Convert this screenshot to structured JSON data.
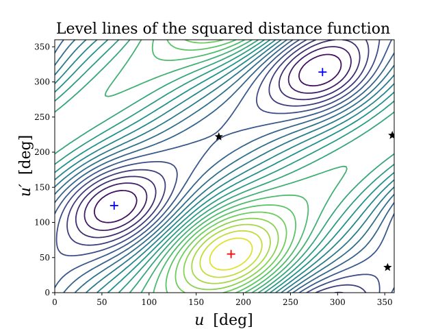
{
  "chart_data": {
    "type": "contour",
    "title": "Level lines of the squared distance function",
    "xlabel_symbol": "u",
    "xlabel_unit": "[deg]",
    "ylabel_symbol": "u′",
    "ylabel_unit": "[deg]",
    "xlim": [
      0,
      360
    ],
    "ylim": [
      0,
      360
    ],
    "xticks": [
      0,
      50,
      100,
      150,
      200,
      250,
      300,
      350
    ],
    "yticks": [
      0,
      50,
      100,
      150,
      200,
      250,
      300,
      350
    ],
    "grid": false,
    "colormap": "viridis",
    "colormap_stops": [
      "#440154",
      "#3b528b",
      "#21918c",
      "#5ec962",
      "#fde725"
    ],
    "minima": [
      {
        "x": 63,
        "y": 124,
        "color": "#0000ff",
        "marker": "plus"
      },
      {
        "x": 284,
        "y": 314,
        "color": "#0000ff",
        "marker": "plus"
      }
    ],
    "maximum": {
      "x": 187,
      "y": 55,
      "color": "#ff0000",
      "marker": "plus"
    },
    "saddles": [
      {
        "x": 174,
        "y": 222,
        "color": "#000000",
        "marker": "star"
      },
      {
        "x": 358,
        "y": 224,
        "color": "#000000",
        "marker": "star"
      },
      {
        "x": 353,
        "y": 36,
        "color": "#000000",
        "marker": "star"
      }
    ]
  }
}
